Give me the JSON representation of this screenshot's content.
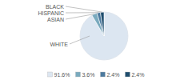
{
  "chart_data": {
    "type": "pie",
    "categories": [
      "WHITE",
      "ASIAN",
      "HISPANIC",
      "BLACK"
    ],
    "values": [
      91.6,
      3.6,
      2.4,
      2.4
    ],
    "value_labels": [
      "91.6%",
      "3.6%",
      "2.4%",
      "2.4%"
    ],
    "colors": [
      "#dce6f1",
      "#7aaabe",
      "#4d7a9e",
      "#1f4e6e"
    ],
    "legend": "bottom"
  }
}
